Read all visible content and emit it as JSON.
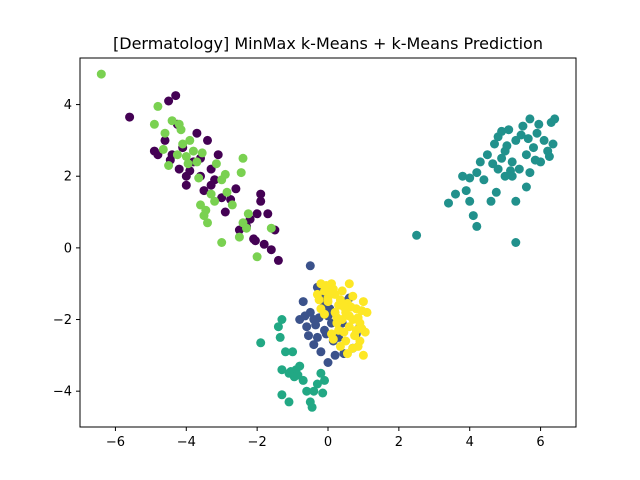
{
  "chart_data": {
    "type": "scatter",
    "title": "[Dermatology] MinMax k-Means + k-Means Prediction",
    "xlabel": "",
    "ylabel": "",
    "xlim": [
      -7.0,
      7.0
    ],
    "ylim": [
      -5.0,
      5.3
    ],
    "xticks": [
      -6,
      -4,
      -2,
      0,
      2,
      4,
      6
    ],
    "yticks": [
      -4,
      -2,
      0,
      2,
      4
    ],
    "xtick_labels": [
      "−6",
      "−4",
      "−2",
      "0",
      "2",
      "4",
      "6"
    ],
    "ytick_labels": [
      "−4",
      "−2",
      "0",
      "2",
      "4"
    ],
    "grid": false,
    "series": [
      {
        "color": "#440154",
        "points": [
          [
            -5.6,
            3.65
          ],
          [
            -4.3,
            4.25
          ],
          [
            -4.5,
            4.1
          ],
          [
            -4.6,
            3.0
          ],
          [
            -4.9,
            2.7
          ],
          [
            -4.4,
            2.6
          ],
          [
            -4.2,
            2.2
          ],
          [
            -4.0,
            2.0
          ],
          [
            -3.8,
            2.4
          ],
          [
            -3.6,
            2.0
          ],
          [
            -3.5,
            1.6
          ],
          [
            -3.4,
            3.0
          ],
          [
            -3.3,
            2.2
          ],
          [
            -3.2,
            1.9
          ],
          [
            -3.0,
            1.4
          ],
          [
            -2.9,
            1.0
          ],
          [
            -2.6,
            1.65
          ],
          [
            -2.5,
            0.5
          ],
          [
            -2.2,
            0.8
          ],
          [
            -2.1,
            0.25
          ],
          [
            -2.0,
            0.95
          ],
          [
            -1.9,
            1.3
          ],
          [
            -1.8,
            0.1
          ],
          [
            -1.7,
            0.95
          ],
          [
            -1.6,
            -0.05
          ],
          [
            -1.5,
            0.5
          ],
          [
            -1.4,
            -0.35
          ],
          [
            -1.9,
            1.5
          ],
          [
            -3.7,
            3.2
          ],
          [
            -4.1,
            2.8
          ],
          [
            -4.8,
            2.6
          ],
          [
            -4.0,
            1.75
          ],
          [
            -3.1,
            2.6
          ],
          [
            -2.3,
            0.6
          ],
          [
            -3.9,
            2.15
          ],
          [
            -3.3,
            1.75
          ],
          [
            -2.75,
            1.35
          ],
          [
            -4.25,
            3.45
          ],
          [
            -4.45,
            2.45
          ],
          [
            -3.6,
            2.5
          ],
          [
            -2.05,
            0.2
          ]
        ]
      },
      {
        "color": "#3b528b",
        "points": [
          [
            -0.5,
            -0.5
          ],
          [
            -0.3,
            -1.1
          ],
          [
            -0.2,
            -1.4
          ],
          [
            -0.1,
            -1.6
          ],
          [
            0.0,
            -1.9
          ],
          [
            0.1,
            -2.1
          ],
          [
            -0.1,
            -2.3
          ],
          [
            -0.3,
            -2.5
          ],
          [
            -0.5,
            -1.8
          ],
          [
            -0.7,
            -1.5
          ],
          [
            -0.8,
            -2.0
          ],
          [
            -0.6,
            -2.2
          ],
          [
            -0.4,
            -2.7
          ],
          [
            -0.2,
            -2.9
          ],
          [
            0.0,
            -3.2
          ],
          [
            0.2,
            -3.0
          ],
          [
            0.3,
            -2.5
          ],
          [
            0.4,
            -2.1
          ],
          [
            0.5,
            -1.5
          ],
          [
            0.6,
            -1.4
          ],
          [
            0.8,
            -2.4
          ],
          [
            0.7,
            -2.8
          ],
          [
            0.9,
            -2.2
          ],
          [
            -0.4,
            -2.0
          ],
          [
            -0.25,
            -1.95
          ],
          [
            0.15,
            -2.6
          ],
          [
            -0.05,
            -2.4
          ],
          [
            -0.55,
            -2.45
          ],
          [
            0.45,
            -2.95
          ],
          [
            0.05,
            -1.7
          ],
          [
            -0.35,
            -2.15
          ],
          [
            -0.65,
            -1.9
          ]
        ]
      },
      {
        "color": "#21918c",
        "points": [
          [
            2.5,
            0.35
          ],
          [
            3.4,
            1.25
          ],
          [
            3.6,
            1.5
          ],
          [
            3.8,
            2.0
          ],
          [
            3.9,
            1.6
          ],
          [
            4.0,
            1.3
          ],
          [
            4.1,
            0.9
          ],
          [
            4.2,
            0.6
          ],
          [
            4.3,
            2.4
          ],
          [
            4.4,
            1.9
          ],
          [
            4.5,
            2.6
          ],
          [
            4.6,
            1.3
          ],
          [
            4.7,
            2.9
          ],
          [
            4.8,
            3.1
          ],
          [
            4.9,
            2.5
          ],
          [
            5.0,
            2.7
          ],
          [
            5.1,
            3.3
          ],
          [
            5.2,
            2.0
          ],
          [
            5.3,
            3.0
          ],
          [
            5.4,
            2.2
          ],
          [
            5.5,
            3.4
          ],
          [
            5.6,
            2.6
          ],
          [
            5.7,
            3.6
          ],
          [
            5.8,
            2.8
          ],
          [
            5.9,
            3.2
          ],
          [
            6.0,
            2.4
          ],
          [
            6.1,
            3.0
          ],
          [
            6.2,
            2.7
          ],
          [
            6.3,
            3.5
          ],
          [
            6.4,
            3.6
          ],
          [
            5.0,
            2.0
          ],
          [
            5.3,
            0.15
          ],
          [
            5.3,
            1.3
          ],
          [
            5.6,
            1.7
          ],
          [
            4.2,
            2.1
          ],
          [
            4.0,
            1.95
          ],
          [
            4.8,
            2.2
          ],
          [
            5.2,
            2.4
          ],
          [
            5.7,
            2.1
          ],
          [
            6.35,
            2.9
          ],
          [
            4.9,
            3.25
          ],
          [
            5.45,
            3.15
          ],
          [
            5.85,
            2.45
          ],
          [
            5.05,
            2.85
          ],
          [
            4.65,
            2.35
          ],
          [
            5.65,
            3.05
          ],
          [
            5.95,
            3.45
          ],
          [
            6.25,
            2.55
          ],
          [
            5.15,
            2.15
          ],
          [
            4.75,
            1.55
          ]
        ]
      },
      {
        "color": "#22a884",
        "points": [
          [
            -1.4,
            -2.2
          ],
          [
            -1.3,
            -2.0
          ],
          [
            -1.2,
            -2.9
          ],
          [
            -1.0,
            -2.9
          ],
          [
            -0.9,
            -3.4
          ],
          [
            -0.8,
            -3.3
          ],
          [
            -1.1,
            -3.5
          ],
          [
            -1.3,
            -3.4
          ],
          [
            -0.7,
            -3.7
          ],
          [
            -0.6,
            -4.0
          ],
          [
            -0.5,
            -4.3
          ],
          [
            -0.4,
            -4.0
          ],
          [
            -0.3,
            -3.8
          ],
          [
            -0.2,
            -3.5
          ],
          [
            -0.1,
            -3.7
          ],
          [
            -1.9,
            -2.65
          ],
          [
            -1.3,
            -4.1
          ],
          [
            -1.1,
            -4.3
          ],
          [
            -0.45,
            -4.45
          ],
          [
            -0.85,
            -3.55
          ],
          [
            -0.15,
            -4.05
          ],
          [
            -1.35,
            -2.5
          ],
          [
            -1.05,
            -3.45
          ],
          [
            -0.95,
            -3.6
          ]
        ]
      },
      {
        "color": "#7ad151",
        "points": [
          [
            -6.4,
            4.85
          ],
          [
            -4.9,
            3.45
          ],
          [
            -4.8,
            3.95
          ],
          [
            -4.6,
            3.2
          ],
          [
            -4.4,
            3.55
          ],
          [
            -4.2,
            3.45
          ],
          [
            -4.1,
            2.9
          ],
          [
            -4.0,
            2.55
          ],
          [
            -3.9,
            3.0
          ],
          [
            -3.8,
            2.7
          ],
          [
            -3.7,
            2.4
          ],
          [
            -3.6,
            1.2
          ],
          [
            -3.5,
            0.9
          ],
          [
            -3.4,
            0.7
          ],
          [
            -3.3,
            1.5
          ],
          [
            -3.2,
            1.3
          ],
          [
            -3.0,
            1.9
          ],
          [
            -2.9,
            2.05
          ],
          [
            -2.7,
            1.2
          ],
          [
            -2.5,
            0.3
          ],
          [
            -2.4,
            0.7
          ],
          [
            -2.3,
            0.55
          ],
          [
            -2.0,
            -0.25
          ],
          [
            -1.6,
            0.55
          ],
          [
            -2.45,
            2.1
          ],
          [
            -2.4,
            2.5
          ],
          [
            -2.25,
            0.95
          ],
          [
            -3.0,
            0.15
          ],
          [
            -4.5,
            2.3
          ],
          [
            -4.25,
            2.6
          ],
          [
            -3.55,
            2.65
          ],
          [
            -3.95,
            2.35
          ],
          [
            -4.15,
            3.3
          ],
          [
            -3.65,
            1.95
          ],
          [
            -3.15,
            2.35
          ],
          [
            -4.65,
            2.75
          ],
          [
            -2.85,
            1.55
          ],
          [
            -3.45,
            1.05
          ]
        ]
      },
      {
        "color": "#fde725",
        "points": [
          [
            -0.3,
            -1.3
          ],
          [
            -0.2,
            -1.0
          ],
          [
            -0.1,
            -1.2
          ],
          [
            0.0,
            -1.4
          ],
          [
            0.1,
            -1.0
          ],
          [
            0.2,
            -1.3
          ],
          [
            0.3,
            -1.6
          ],
          [
            0.4,
            -1.2
          ],
          [
            0.5,
            -1.8
          ],
          [
            0.6,
            -1.9
          ],
          [
            0.7,
            -2.0
          ],
          [
            0.8,
            -1.7
          ],
          [
            0.9,
            -2.1
          ],
          [
            1.0,
            -1.5
          ],
          [
            1.1,
            -1.8
          ],
          [
            0.1,
            -2.4
          ],
          [
            0.3,
            -2.3
          ],
          [
            0.5,
            -2.6
          ],
          [
            0.7,
            -2.8
          ],
          [
            0.9,
            -2.6
          ],
          [
            1.0,
            -3.0
          ],
          [
            -0.2,
            -1.7
          ],
          [
            0.2,
            -1.8
          ],
          [
            0.4,
            -2.0
          ],
          [
            0.6,
            -2.2
          ],
          [
            0.8,
            -2.3
          ],
          [
            0.0,
            -1.5
          ],
          [
            -0.1,
            -1.85
          ],
          [
            0.35,
            -1.45
          ],
          [
            0.55,
            -1.55
          ],
          [
            0.75,
            -2.45
          ],
          [
            0.95,
            -2.25
          ],
          [
            0.15,
            -1.15
          ],
          [
            0.65,
            -1.65
          ],
          [
            0.85,
            -1.95
          ],
          [
            0.25,
            -2.1
          ],
          [
            0.45,
            -2.35
          ],
          [
            -0.05,
            -1.05
          ],
          [
            0.05,
            -1.25
          ],
          [
            0.7,
            -1.35
          ],
          [
            0.95,
            -1.75
          ],
          [
            1.05,
            -2.35
          ],
          [
            0.35,
            -2.75
          ],
          [
            0.55,
            -2.95
          ],
          [
            0.25,
            -1.95
          ],
          [
            0.15,
            -2.55
          ],
          [
            -0.25,
            -1.45
          ],
          [
            0.85,
            -2.75
          ],
          [
            0.6,
            -1.0
          ],
          [
            0.45,
            -1.65
          ]
        ]
      }
    ]
  }
}
